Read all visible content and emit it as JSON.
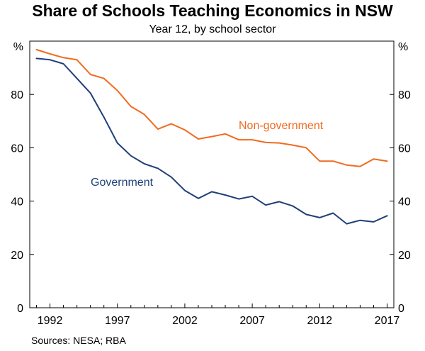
{
  "title": "Share of Schools Teaching Economics in NSW",
  "subtitle": "Year 12, by school sector",
  "source": "Sources: NESA; RBA",
  "colors": {
    "government": "#1f3f7a",
    "non_government": "#f26a21",
    "axis": "#000000"
  },
  "chart_data": {
    "type": "line",
    "title": "Share of Schools Teaching Economics in NSW",
    "subtitle": "Year 12, by school sector",
    "y_unit_label": "%",
    "ylim": [
      0,
      100
    ],
    "xlim": [
      1990.5,
      2017.5
    ],
    "y_ticks": [
      0,
      20,
      40,
      60,
      80
    ],
    "x_ticks": [
      1992,
      1997,
      2002,
      2007,
      2012,
      2017
    ],
    "grid": false,
    "legend": "inline labels",
    "x": [
      1991,
      1992,
      1993,
      1994,
      1995,
      1996,
      1997,
      1998,
      1999,
      2000,
      2001,
      2002,
      2003,
      2004,
      2005,
      2006,
      2007,
      2008,
      2009,
      2010,
      2011,
      2012,
      2013,
      2014,
      2015,
      2016,
      2017
    ],
    "series": [
      {
        "name": "Non-government",
        "color": "#f26a21",
        "values": [
          96.8,
          95.2,
          93.8,
          93.0,
          87.5,
          86.0,
          81.5,
          75.5,
          72.5,
          67.0,
          69.0,
          66.7,
          63.3,
          64.2,
          65.2,
          63.0,
          63.0,
          62.0,
          61.8,
          61.0,
          60.0,
          55.0,
          55.0,
          53.5,
          53.0,
          55.8,
          55.0
        ]
      },
      {
        "name": "Government",
        "color": "#1f3f7a",
        "values": [
          93.5,
          93.0,
          91.5,
          86.0,
          80.5,
          71.5,
          61.8,
          57.0,
          54.0,
          52.3,
          49.0,
          44.0,
          41.0,
          43.5,
          42.3,
          40.8,
          41.8,
          38.5,
          39.8,
          38.2,
          35.0,
          33.8,
          35.5,
          31.5,
          32.8,
          32.2,
          34.5
        ]
      }
    ]
  }
}
